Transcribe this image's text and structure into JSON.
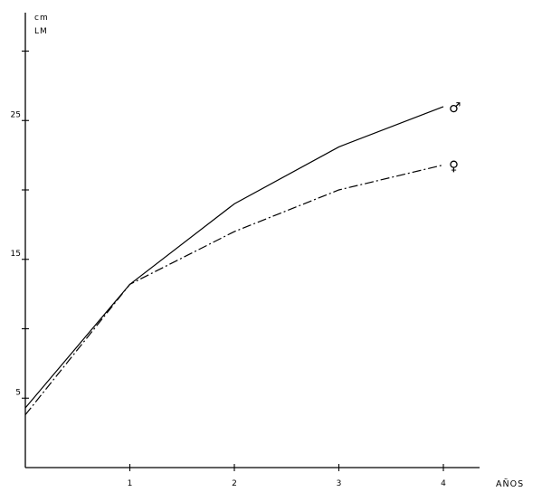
{
  "chart_data": {
    "type": "line",
    "xlabel": "AÑOS",
    "ylabel_unit": "cm",
    "ylabel": "LM",
    "x": [
      0,
      1,
      2,
      3,
      4
    ],
    "x_tick_labels": [
      "1",
      "2",
      "3",
      "4"
    ],
    "y_tick_labels": [
      "5",
      "15",
      "25"
    ],
    "y_minor_ticks": [
      0,
      10,
      20,
      30
    ],
    "ylim": [
      0,
      33
    ],
    "xlim": [
      0,
      4.4
    ],
    "grid": false,
    "series": [
      {
        "name": "♂",
        "style": "solid",
        "values": [
          4.3,
          13.2,
          19.0,
          23.1,
          26.0
        ]
      },
      {
        "name": "♀",
        "style": "dash-dot",
        "values": [
          3.8,
          13.2,
          17.0,
          20.0,
          21.8
        ]
      }
    ],
    "colors": {
      "axis": "#000000",
      "line": "#000000",
      "background": "#ffffff"
    }
  }
}
